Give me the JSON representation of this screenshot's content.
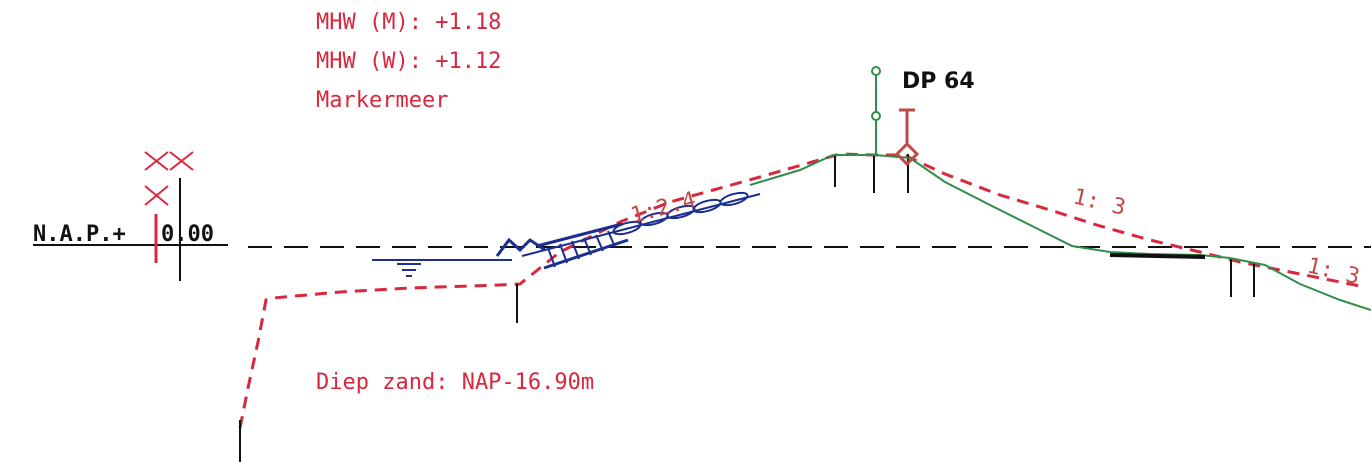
{
  "colors": {
    "red": "#d8283d",
    "blue": "#1c2f8f",
    "green": "#2f8f48",
    "black": "#111111",
    "slope": "#c04a4a"
  },
  "water_levels": {
    "mhw_m": "MHW (M): +1.18",
    "mhw_w": "MHW (W): +1.12",
    "water_body": "Markermeer"
  },
  "reference": {
    "nap_label": "N.A.P.+",
    "nap_value": "0.00"
  },
  "profile": {
    "point_label": "DP 64"
  },
  "slopes": {
    "outer": "1:2.4",
    "inner_upper": "1: 3",
    "inner_lower": "1: 3"
  },
  "note": {
    "sand_depth": "Diep zand: NAP-16.90m"
  },
  "symbols": {
    "marker_icon": "double-cross-marker-icon",
    "water_level_icon": "water-level-icon",
    "revetment_icon": "stone-revetment-icon",
    "crest_marker_icon": "crest-marker-icon",
    "survey_point_icon": "survey-point-icon"
  }
}
